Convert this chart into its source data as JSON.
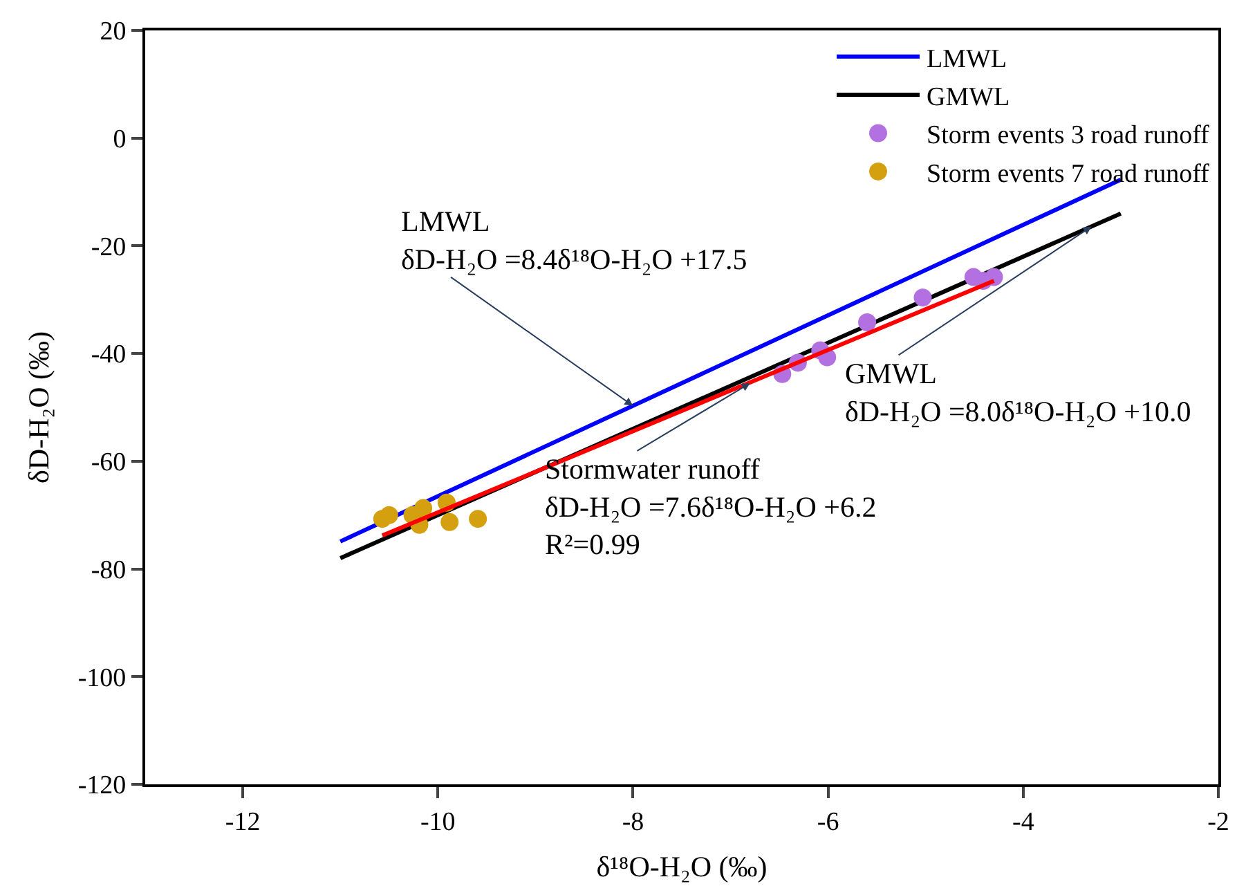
{
  "chart_data": {
    "type": "scatter",
    "xlabel": "δ¹⁸O-H₂O (‰)",
    "ylabel": "δD-H₂O (‰)",
    "xlim": [
      -13,
      -2
    ],
    "xticks": [
      -12,
      -10,
      -8,
      -6,
      -4,
      -2
    ],
    "ylim": [
      -120,
      20
    ],
    "yticks": [
      -120,
      -100,
      -80,
      -60,
      -40,
      -20,
      0,
      20
    ],
    "legend": "top right",
    "series": [
      {
        "name": "LMWL",
        "type": "line",
        "color": "#0000ff",
        "x": [
          -11,
          -3
        ],
        "values": [
          -74.9,
          -7.7
        ]
      },
      {
        "name": "GMWL",
        "type": "line",
        "color": "#000000",
        "x": [
          -11,
          -3
        ],
        "values": [
          -78.0,
          -14.0
        ]
      },
      {
        "name": "Storm events 3 road runoff",
        "marker": "circle",
        "color": "#b370e0",
        "x": [
          -6.47,
          -6.31,
          -6.01,
          -6.08,
          -5.6,
          -5.03,
          -4.51,
          -4.41,
          -4.3
        ],
        "values": [
          -43.8,
          -41.7,
          -40.7,
          -39.4,
          -34.2,
          -29.6,
          -25.8,
          -26.5,
          -25.8
        ]
      },
      {
        "name": "Storm events 7 road runoff",
        "marker": "circle",
        "color": "#d4a010",
        "x": [
          -10.5,
          -10.57,
          -10.26,
          -10.15,
          -10.19,
          -9.91,
          -9.88,
          -9.59
        ],
        "values": [
          -70.0,
          -70.7,
          -70.0,
          -68.7,
          -71.8,
          -67.7,
          -71.3,
          -70.7
        ]
      },
      {
        "type": "line",
        "color": "#ff0000",
        "x": [
          -10.57,
          -4.3
        ],
        "values": [
          -73.8,
          -26.5
        ]
      }
    ],
    "annotations": [
      {
        "text": "LMWL\nδD-H₂O =8.4δ¹⁸O-H₂O +17.5",
        "x": -8.0,
        "y": -49.7
      },
      {
        "text": "Stormwater runoff\nδD-H₂O =7.6δ¹⁸O-H₂O +6.2\nR²=0.99",
        "x": -6.8,
        "y": -45.5
      },
      {
        "text": "GMWL\nδD-H₂O =8.0δ¹⁸O-H₂O +10.0",
        "x": -3.3,
        "y": -16.4
      }
    ]
  }
}
